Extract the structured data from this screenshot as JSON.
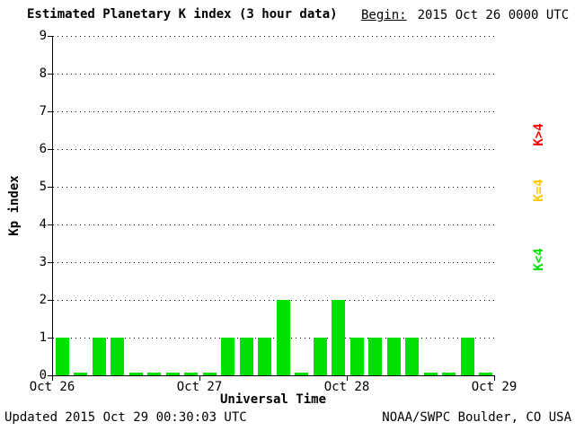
{
  "header": {
    "title": "Estimated Planetary K index (3 hour data)",
    "begin_label": "Begin:",
    "begin_value": "2015 Oct 26 0000 UTC"
  },
  "chart_data": {
    "type": "bar",
    "title": "Estimated Planetary K index (3 hour data)",
    "xlabel": "Universal Time",
    "ylabel": "Kp index",
    "ylim": [
      0,
      9
    ],
    "yticks": [
      0,
      1,
      2,
      3,
      4,
      5,
      6,
      7,
      8,
      9
    ],
    "x_tick_labels": [
      "Oct 26",
      "Oct 27",
      "Oct 28",
      "Oct 29"
    ],
    "bar_interval_hours": 3,
    "values": [
      1,
      0,
      1,
      1,
      0,
      0,
      0,
      0,
      0,
      1,
      1,
      1,
      2,
      0,
      1,
      2,
      1,
      1,
      1,
      1,
      0,
      0,
      1,
      0
    ],
    "colors": {
      "lt4": "#00e000",
      "eq4": "#ffc800",
      "gt4": "#ff0000"
    },
    "grid": "horizontal-dotted",
    "legend_position": "right"
  },
  "legend": {
    "items": [
      {
        "name": "legend-k-gt-4",
        "label": "K>4",
        "color": "#ff0000"
      },
      {
        "name": "legend-k-eq-4",
        "label": "K=4",
        "color": "#ffc800"
      },
      {
        "name": "legend-k-lt-4",
        "label": "K<4",
        "color": "#00e000"
      }
    ]
  },
  "footer": {
    "updated": "Updated 2015 Oct 29 00:30:03 UTC",
    "source": "NOAA/SWPC Boulder, CO USA"
  }
}
